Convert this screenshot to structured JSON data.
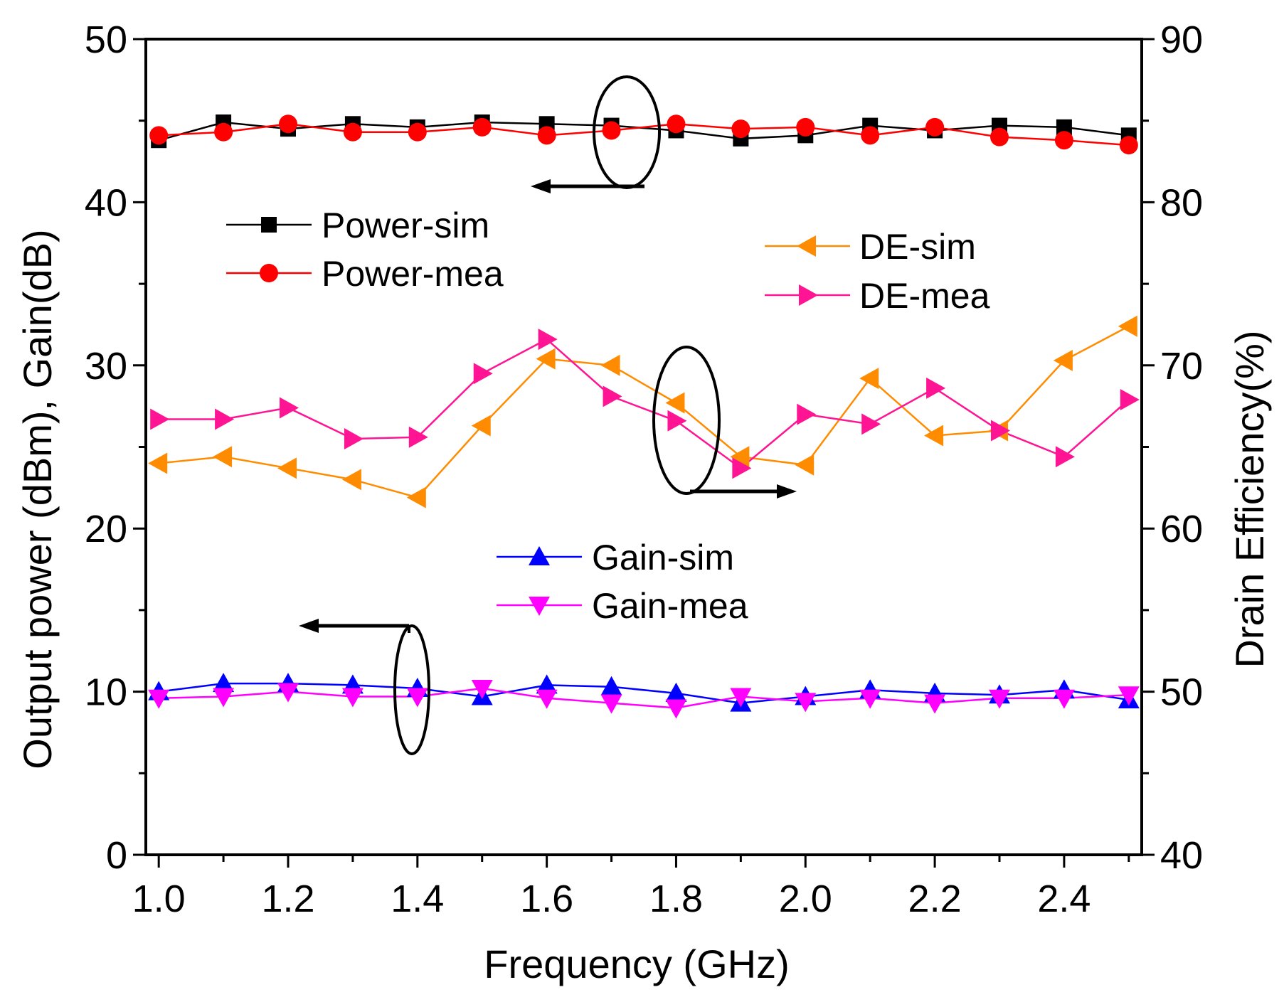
{
  "chart_data": {
    "type": "line",
    "xlabel": "Frequency (GHz)",
    "ylabel_left": "Output power (dBm), Gain(dB)",
    "ylabel_right": "Drain Efficiency(%)",
    "xlim": [
      0.98,
      2.52
    ],
    "ylim_left": [
      0,
      50
    ],
    "ylim_right": [
      40,
      90
    ],
    "x_ticks": [
      "1.0",
      "1.2",
      "1.4",
      "1.6",
      "1.8",
      "2.0",
      "2.2",
      "2.4"
    ],
    "x_tick_values": [
      1.0,
      1.2,
      1.4,
      1.6,
      1.8,
      2.0,
      2.2,
      2.4
    ],
    "y_ticks_left": [
      "0",
      "10",
      "20",
      "30",
      "40",
      "50"
    ],
    "y_tick_values_left": [
      0,
      10,
      20,
      30,
      40,
      50
    ],
    "y_ticks_right": [
      "40",
      "50",
      "60",
      "70",
      "80",
      "90"
    ],
    "y_tick_values_right": [
      40,
      50,
      60,
      70,
      80,
      90
    ],
    "grid": false,
    "x": [
      1.0,
      1.1,
      1.2,
      1.3,
      1.4,
      1.5,
      1.6,
      1.7,
      1.8,
      1.9,
      2.0,
      2.1,
      2.2,
      2.3,
      2.4,
      2.5
    ],
    "series": [
      {
        "name": "Power-sim",
        "axis": "left",
        "marker": "square",
        "color": "#000000",
        "values": [
          43.8,
          44.9,
          44.5,
          44.8,
          44.6,
          44.9,
          44.8,
          44.7,
          44.4,
          43.9,
          44.1,
          44.7,
          44.4,
          44.7,
          44.6,
          44.1
        ]
      },
      {
        "name": "Power-mea",
        "axis": "left",
        "marker": "circle",
        "color": "#ff0000",
        "values": [
          44.1,
          44.3,
          44.8,
          44.3,
          44.3,
          44.6,
          44.1,
          44.4,
          44.8,
          44.5,
          44.6,
          44.1,
          44.6,
          44.0,
          43.8,
          43.5
        ]
      },
      {
        "name": "DE-sim",
        "axis": "right",
        "marker": "triangle-left",
        "color": "#ff8c00",
        "values": [
          64.0,
          64.4,
          63.7,
          63.0,
          61.9,
          66.3,
          70.4,
          70.0,
          67.7,
          64.4,
          63.9,
          69.2,
          65.7,
          66.0,
          70.3,
          72.4
        ]
      },
      {
        "name": "DE-mea",
        "axis": "right",
        "marker": "triangle-right",
        "color": "#ff1493",
        "values": [
          66.7,
          66.7,
          67.4,
          65.5,
          65.6,
          69.5,
          71.6,
          68.1,
          66.6,
          63.7,
          67.0,
          66.4,
          68.6,
          66.0,
          64.4,
          67.9
        ]
      },
      {
        "name": "Gain-sim",
        "axis": "left",
        "marker": "triangle-up",
        "color": "#0000ff",
        "values": [
          10.0,
          10.5,
          10.5,
          10.4,
          10.2,
          9.7,
          10.4,
          10.3,
          9.9,
          9.3,
          9.7,
          10.1,
          9.9,
          9.8,
          10.1,
          9.5
        ]
      },
      {
        "name": "Gain-mea",
        "axis": "left",
        "marker": "triangle-down",
        "color": "#ff00ff",
        "values": [
          9.6,
          9.7,
          10.0,
          9.7,
          9.7,
          10.2,
          9.6,
          9.3,
          9.0,
          9.7,
          9.4,
          9.6,
          9.3,
          9.6,
          9.6,
          9.8
        ]
      }
    ]
  }
}
